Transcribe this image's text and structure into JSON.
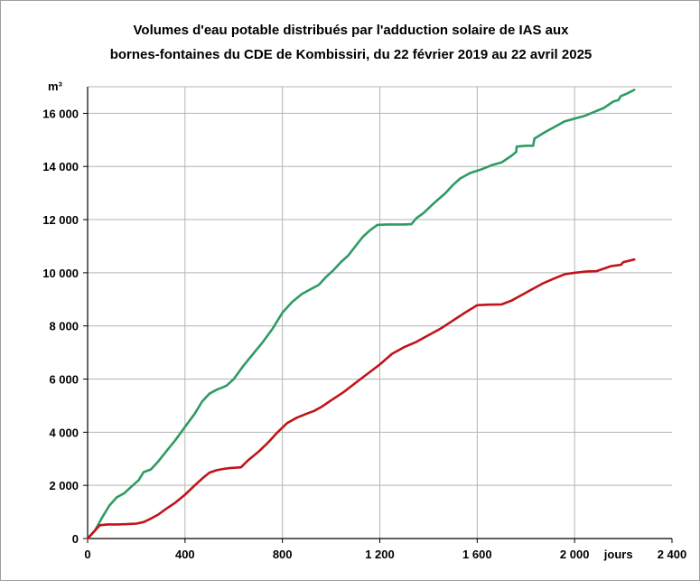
{
  "chart_data": {
    "type": "line",
    "title_line1": "Volumes d'eau potable distribués par l'adduction solaire de IAS aux",
    "title_line2": "bornes-fontaines du CDE de Kombissiri, du 22 février 2019 au 22 avril 2025",
    "ylabel": "m³",
    "xlabel": "jours",
    "xlim": [
      0,
      2400
    ],
    "ylim": [
      0,
      17000
    ],
    "x_ticks": [
      0,
      400,
      800,
      1200,
      1600,
      2000,
      2400
    ],
    "x_tick_labels": [
      "0",
      "400",
      "800",
      "1 200",
      "1 600",
      "2 000",
      "2 400"
    ],
    "y_ticks": [
      0,
      2000,
      4000,
      6000,
      8000,
      10000,
      12000,
      14000,
      16000
    ],
    "y_tick_labels": [
      "0",
      "2 000",
      "4 000",
      "6 000",
      "8 000",
      "10 000",
      "12 000",
      "14 000",
      "16 000"
    ],
    "grid": true,
    "series": [
      {
        "color": "#2e9b63",
        "points": [
          [
            0,
            0
          ],
          [
            30,
            300
          ],
          [
            60,
            800
          ],
          [
            90,
            1250
          ],
          [
            120,
            1550
          ],
          [
            150,
            1700
          ],
          [
            180,
            1950
          ],
          [
            210,
            2200
          ],
          [
            230,
            2500
          ],
          [
            260,
            2600
          ],
          [
            290,
            2900
          ],
          [
            320,
            3250
          ],
          [
            360,
            3700
          ],
          [
            400,
            4200
          ],
          [
            440,
            4700
          ],
          [
            470,
            5150
          ],
          [
            500,
            5450
          ],
          [
            530,
            5600
          ],
          [
            570,
            5750
          ],
          [
            600,
            6000
          ],
          [
            640,
            6500
          ],
          [
            680,
            6950
          ],
          [
            720,
            7400
          ],
          [
            760,
            7900
          ],
          [
            800,
            8500
          ],
          [
            840,
            8900
          ],
          [
            880,
            9200
          ],
          [
            920,
            9400
          ],
          [
            950,
            9550
          ],
          [
            980,
            9850
          ],
          [
            1010,
            10100
          ],
          [
            1040,
            10400
          ],
          [
            1070,
            10650
          ],
          [
            1100,
            11000
          ],
          [
            1130,
            11350
          ],
          [
            1160,
            11600
          ],
          [
            1190,
            11800
          ],
          [
            1230,
            11820
          ],
          [
            1260,
            11820
          ],
          [
            1300,
            11820
          ],
          [
            1330,
            11830
          ],
          [
            1350,
            12050
          ],
          [
            1380,
            12250
          ],
          [
            1420,
            12600
          ],
          [
            1470,
            13000
          ],
          [
            1500,
            13300
          ],
          [
            1530,
            13550
          ],
          [
            1570,
            13750
          ],
          [
            1620,
            13900
          ],
          [
            1660,
            14050
          ],
          [
            1700,
            14150
          ],
          [
            1740,
            14400
          ],
          [
            1760,
            14550
          ],
          [
            1762,
            14750
          ],
          [
            1800,
            14780
          ],
          [
            1830,
            14780
          ],
          [
            1835,
            15050
          ],
          [
            1880,
            15300
          ],
          [
            1920,
            15500
          ],
          [
            1960,
            15700
          ],
          [
            2000,
            15800
          ],
          [
            2040,
            15900
          ],
          [
            2080,
            16050
          ],
          [
            2120,
            16200
          ],
          [
            2160,
            16450
          ],
          [
            2180,
            16500
          ],
          [
            2190,
            16650
          ],
          [
            2210,
            16720
          ],
          [
            2245,
            16880
          ]
        ]
      },
      {
        "color": "#c0141b",
        "points": [
          [
            0,
            0
          ],
          [
            20,
            200
          ],
          [
            50,
            500
          ],
          [
            80,
            530
          ],
          [
            120,
            530
          ],
          [
            160,
            540
          ],
          [
            200,
            560
          ],
          [
            230,
            620
          ],
          [
            260,
            750
          ],
          [
            290,
            900
          ],
          [
            320,
            1100
          ],
          [
            360,
            1350
          ],
          [
            400,
            1650
          ],
          [
            440,
            2000
          ],
          [
            470,
            2250
          ],
          [
            500,
            2480
          ],
          [
            530,
            2570
          ],
          [
            560,
            2620
          ],
          [
            580,
            2650
          ],
          [
            630,
            2680
          ],
          [
            660,
            2950
          ],
          [
            700,
            3250
          ],
          [
            740,
            3600
          ],
          [
            780,
            4000
          ],
          [
            820,
            4350
          ],
          [
            860,
            4550
          ],
          [
            900,
            4700
          ],
          [
            930,
            4800
          ],
          [
            960,
            4950
          ],
          [
            1000,
            5200
          ],
          [
            1050,
            5500
          ],
          [
            1100,
            5850
          ],
          [
            1150,
            6200
          ],
          [
            1200,
            6550
          ],
          [
            1250,
            6950
          ],
          [
            1300,
            7200
          ],
          [
            1350,
            7400
          ],
          [
            1400,
            7650
          ],
          [
            1450,
            7900
          ],
          [
            1500,
            8200
          ],
          [
            1550,
            8500
          ],
          [
            1600,
            8780
          ],
          [
            1640,
            8800
          ],
          [
            1700,
            8810
          ],
          [
            1740,
            8950
          ],
          [
            1780,
            9150
          ],
          [
            1830,
            9400
          ],
          [
            1870,
            9600
          ],
          [
            1920,
            9800
          ],
          [
            1960,
            9950
          ],
          [
            2000,
            10000
          ],
          [
            2050,
            10050
          ],
          [
            2090,
            10060
          ],
          [
            2150,
            10250
          ],
          [
            2190,
            10300
          ],
          [
            2200,
            10400
          ],
          [
            2245,
            10500
          ]
        ]
      }
    ]
  }
}
